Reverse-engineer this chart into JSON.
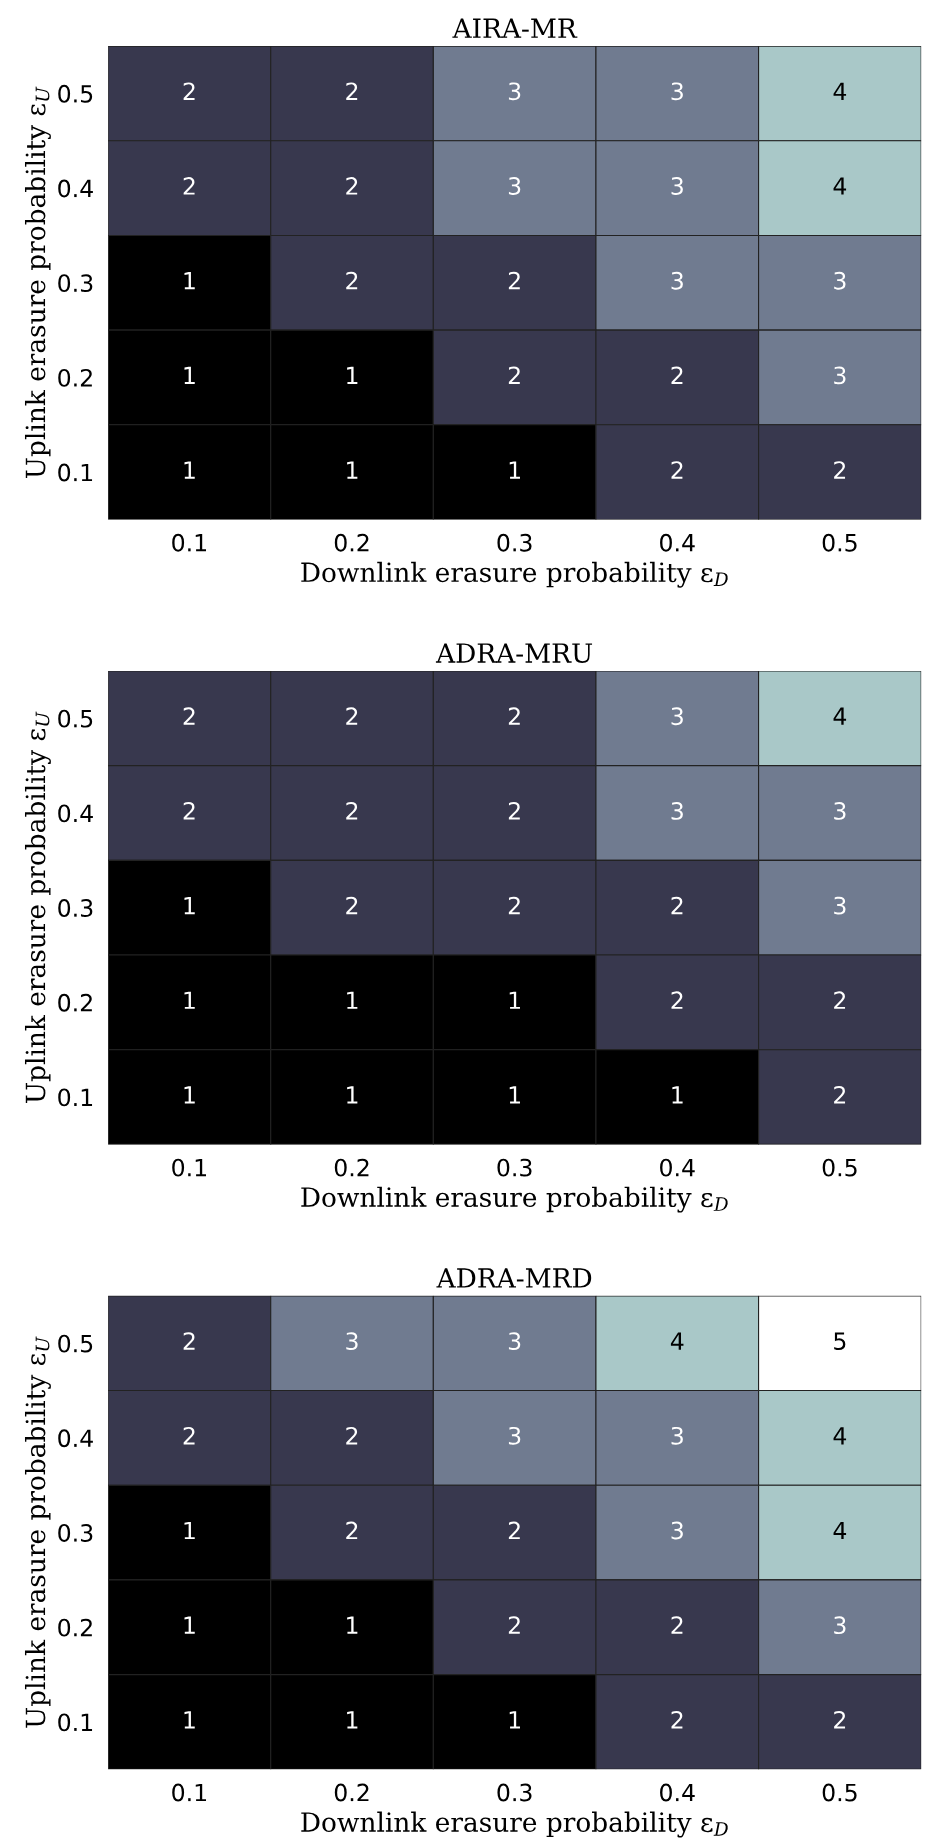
{
  "chart_data": [
    {
      "type": "heatmap",
      "title": "AIRA-MR",
      "xlabel": "Downlink erasure probability ε$_{D}$",
      "ylabel": "Uplink erasure probability ε$_{U}$",
      "categories": [
        "0.1",
        "0.2",
        "0.3",
        "0.4",
        "0.5"
      ],
      "y_categories": [
        "0.5",
        "0.4",
        "0.3",
        "0.2",
        "0.1"
      ],
      "data_labels": true,
      "cells": [
        [
          2,
          2,
          3,
          3,
          4
        ],
        [
          2,
          2,
          3,
          3,
          4
        ],
        [
          1,
          2,
          2,
          3,
          3
        ],
        [
          1,
          1,
          2,
          2,
          3
        ],
        [
          1,
          1,
          1,
          2,
          2
        ]
      ]
    },
    {
      "type": "heatmap",
      "title": "ADRA-MRU",
      "xlabel": "Downlink erasure probability ε$_{D}$",
      "ylabel": "Uplink erasure probability ε$_{U}$",
      "categories": [
        "0.1",
        "0.2",
        "0.3",
        "0.4",
        "0.5"
      ],
      "y_categories": [
        "0.5",
        "0.4",
        "0.3",
        "0.2",
        "0.1"
      ],
      "data_labels": true,
      "cells": [
        [
          2,
          2,
          2,
          3,
          4
        ],
        [
          2,
          2,
          2,
          3,
          3
        ],
        [
          1,
          2,
          2,
          2,
          3
        ],
        [
          1,
          1,
          1,
          2,
          2
        ],
        [
          1,
          1,
          1,
          1,
          2
        ]
      ]
    },
    {
      "type": "heatmap",
      "title": "ADRA-MRD",
      "xlabel": "Downlink erasure probability ε$_{D}$",
      "ylabel": "Uplink erasure probability ε$_{U}$",
      "categories": [
        "0.1",
        "0.2",
        "0.3",
        "0.4",
        "0.5"
      ],
      "y_categories": [
        "0.5",
        "0.4",
        "0.3",
        "0.2",
        "0.1"
      ],
      "data_labels": true,
      "cells": [
        [
          2,
          3,
          3,
          4,
          5
        ],
        [
          2,
          2,
          3,
          3,
          4
        ],
        [
          1,
          2,
          2,
          3,
          4
        ],
        [
          1,
          1,
          2,
          2,
          3
        ],
        [
          1,
          1,
          1,
          2,
          2
        ]
      ]
    }
  ]
}
